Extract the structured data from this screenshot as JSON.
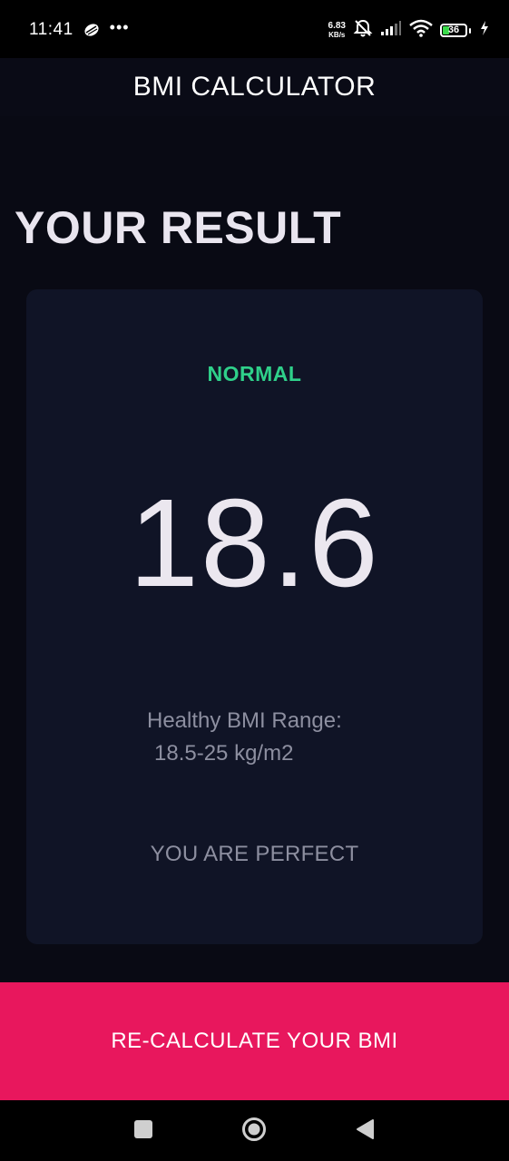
{
  "status_bar": {
    "time": "11:41",
    "more": "•••",
    "net_speed_value": "6.83",
    "net_speed_unit": "KB/s",
    "battery_level": "36",
    "battery_fraction": 0.36,
    "icons": [
      "app-notification-icon",
      "mute-icon",
      "signal-icon",
      "wifi-icon",
      "battery-icon",
      "charging-icon"
    ]
  },
  "app_bar": {
    "title": "BMI CALCULATOR"
  },
  "main": {
    "heading": "YOUR RESULT",
    "result": {
      "category": "NORMAL",
      "category_color": "#2fd08a",
      "bmi_value": "18.6",
      "range_label": "Healthy BMI Range:",
      "range_value": "18.5-25 kg/m2",
      "message": "YOU ARE PERFECT"
    }
  },
  "recalc_button": {
    "label": "RE-CALCULATE YOUR BMI",
    "color": "#e8175d"
  },
  "nav_bar": {
    "icons": [
      "recents-icon",
      "home-icon",
      "back-icon"
    ]
  }
}
